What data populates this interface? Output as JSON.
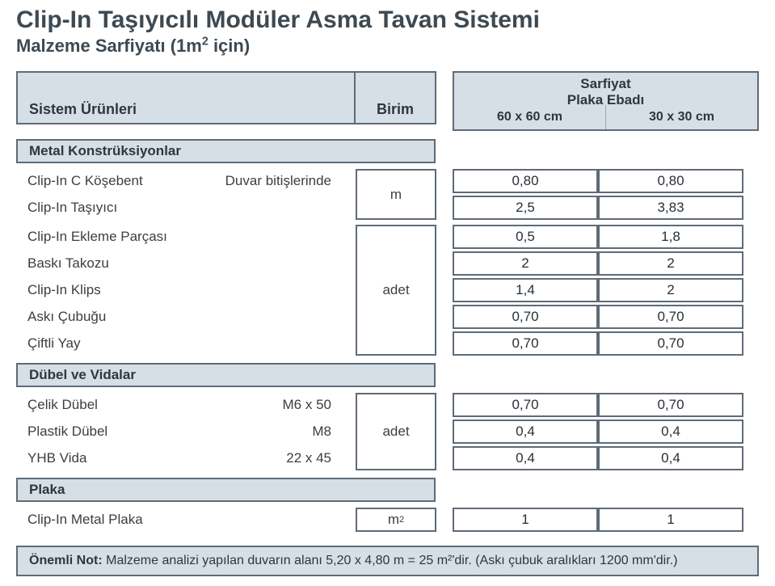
{
  "title": "Clip-In Taşıyıcılı Modüler Asma Tavan Sistemi",
  "subtitle_pre": "Malzeme Sarfiyatı (1m",
  "subtitle_sup": "2",
  "subtitle_post": " için)",
  "header": {
    "system_products": "Sistem Ürünleri",
    "unit": "Birim",
    "right_top1": "Sarfiyat",
    "right_top2": "Plaka Ebadı",
    "col1": "60 x 60 cm",
    "col2": "30 x 30 cm"
  },
  "group1": {
    "title": "Metal Konstrüksiyonlar",
    "unit_m": "m",
    "unit_adet": "adet",
    "rows_m": [
      {
        "name": "Clip-In C Köşebent",
        "extra": "Duvar bitişlerinde",
        "v1": "0,80",
        "v2": "0,80"
      },
      {
        "name": "Clip-In Taşıyıcı",
        "extra": "",
        "v1": "2,5",
        "v2": "3,83"
      }
    ],
    "rows_adet": [
      {
        "name": "Clip-In Ekleme Parçası",
        "extra": "",
        "v1": "0,5",
        "v2": "1,8"
      },
      {
        "name": "Baskı Takozu",
        "extra": "",
        "v1": "2",
        "v2": "2"
      },
      {
        "name": "Clip-In Klips",
        "extra": "",
        "v1": "1,4",
        "v2": "2"
      },
      {
        "name": "Askı Çubuğu",
        "extra": "",
        "v1": "0,70",
        "v2": "0,70"
      },
      {
        "name": "Çiftli Yay",
        "extra": "",
        "v1": "0,70",
        "v2": "0,70"
      }
    ]
  },
  "group2": {
    "title": "Dübel ve Vidalar",
    "unit_adet": "adet",
    "rows": [
      {
        "name": "Çelik Dübel",
        "extra": "M6 x 50",
        "v1": "0,70",
        "v2": "0,70"
      },
      {
        "name": "Plastik Dübel",
        "extra": "M8",
        "v1": "0,4",
        "v2": "0,4"
      },
      {
        "name": "YHB Vida",
        "extra": "22 x 45",
        "v1": "0,4",
        "v2": "0,4"
      }
    ]
  },
  "group3": {
    "title": "Plaka",
    "unit_pre": "m",
    "unit_sup": "2",
    "rows": [
      {
        "name": "Clip-In Metal Plaka",
        "extra": "",
        "v1": "1",
        "v2": "1"
      }
    ]
  },
  "note": {
    "bold": "Önemli Not:",
    "text": " Malzeme analizi yapılan duvarın alanı 5,20 x 4,80 m = 25 m²'dir. (Askı çubuk aralıkları 1200 mm'dir.)"
  },
  "colors": {
    "header_bg": "#d6dee6",
    "border": "#5f6b77",
    "text": "#3b3e44",
    "title": "#3e4951"
  }
}
